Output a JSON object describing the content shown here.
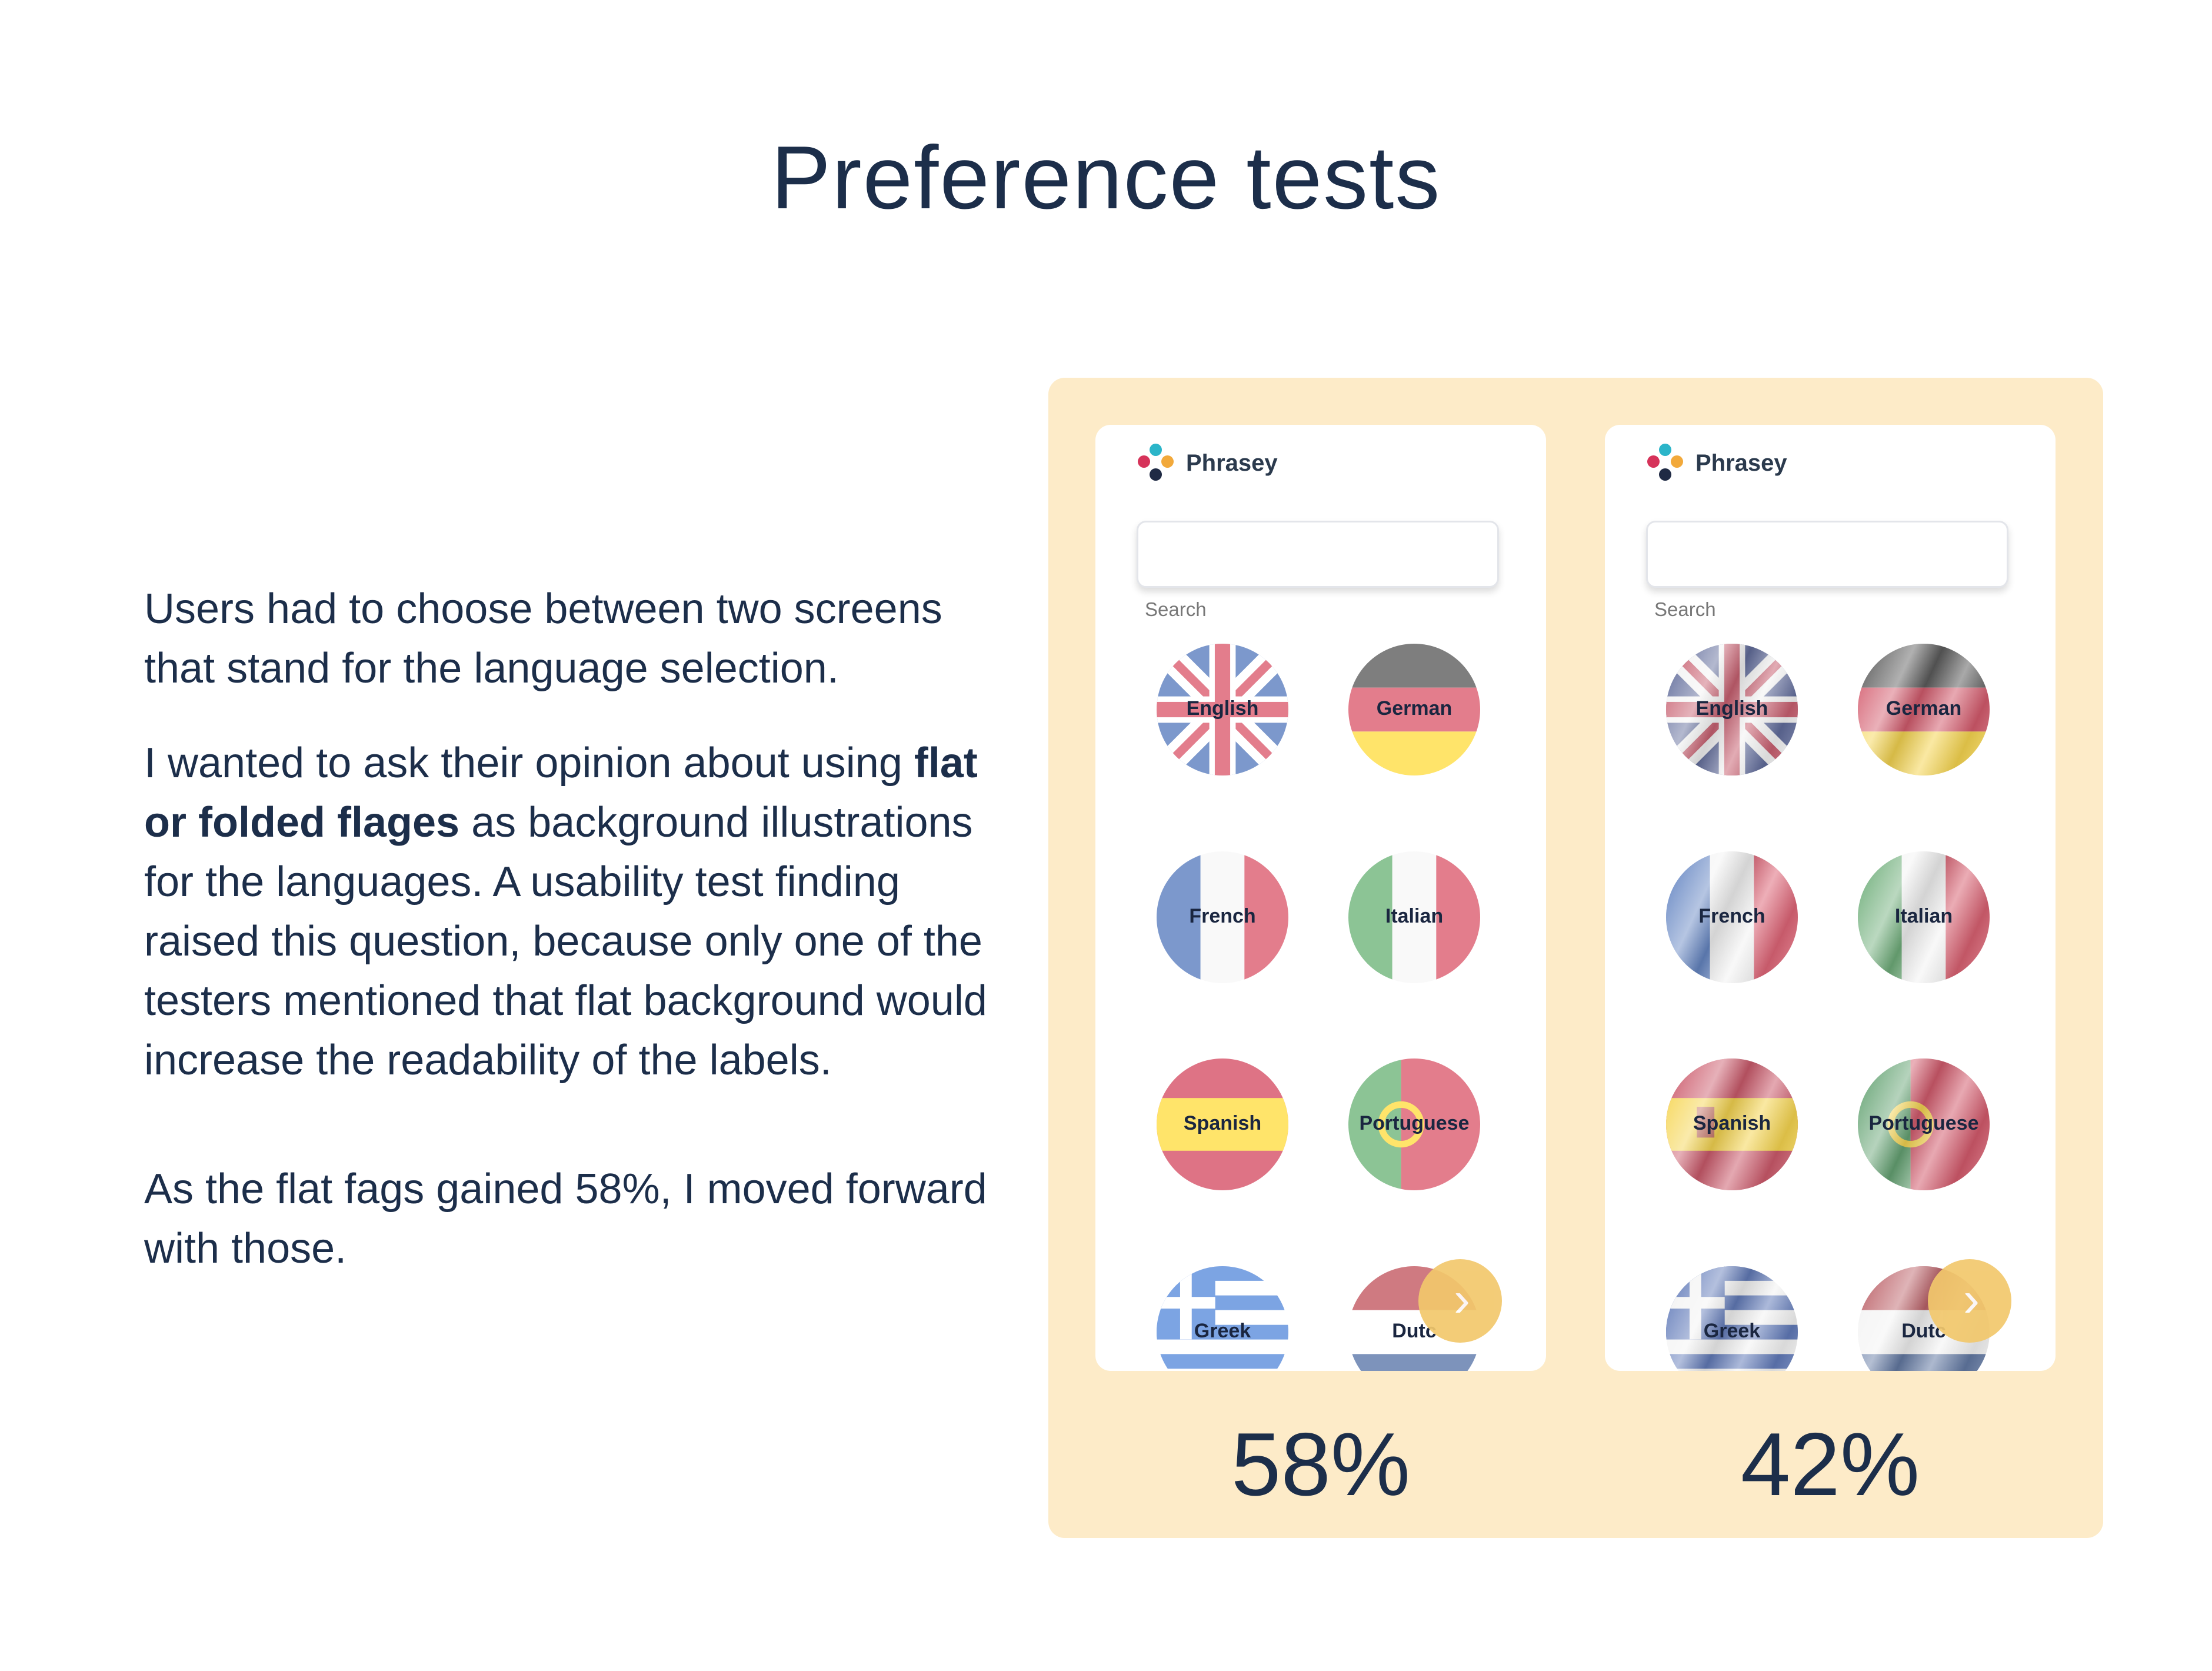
{
  "page": {
    "title": "Preference tests"
  },
  "copy": {
    "p1": "Users had to choose between two screens that stand for the language selection.",
    "p2_start": "I wanted to ask their opinion about using ",
    "p2_bold": "flat or folded flages",
    "p2_end": " as background illustrations for the languages. A usability test finding raised this question, because only one of the testers mentioned that flat background would increase the readability of the labels.",
    "p3": "As the flat fags gained 58%, I moved forward with those."
  },
  "screens": [
    {
      "brand": "Phrasey",
      "search_label": "Search",
      "style": "flat",
      "languages": [
        {
          "label": "English",
          "flag": "uk"
        },
        {
          "label": "German",
          "flag": "de"
        },
        {
          "label": "French",
          "flag": "fr"
        },
        {
          "label": "Italian",
          "flag": "it"
        },
        {
          "label": "Spanish",
          "flag": "es"
        },
        {
          "label": "Portuguese",
          "flag": "pt"
        },
        {
          "label": "Greek",
          "flag": "gr"
        },
        {
          "label": "Dutc",
          "flag": "nl"
        }
      ],
      "result": "58%"
    },
    {
      "brand": "Phrasey",
      "search_label": "Search",
      "style": "folded",
      "languages": [
        {
          "label": "English",
          "flag": "uk"
        },
        {
          "label": "German",
          "flag": "de"
        },
        {
          "label": "French",
          "flag": "fr"
        },
        {
          "label": "Italian",
          "flag": "it"
        },
        {
          "label": "Spanish",
          "flag": "es"
        },
        {
          "label": "Portuguese",
          "flag": "pt"
        },
        {
          "label": "Greek",
          "flag": "gr"
        },
        {
          "label": "Dutc",
          "flag": "nl"
        }
      ],
      "result": "42%"
    }
  ],
  "colors": {
    "panel": "#fdebc8",
    "accent_button": "#f2c86c",
    "text": "#1c2e4a",
    "logo_dots": [
      "#2bb5c9",
      "#f2a93b",
      "#d6335a",
      "#1f2a44"
    ]
  },
  "icons": {
    "next": "chevron-right-icon",
    "logo": "phrasey-logo-icon"
  }
}
